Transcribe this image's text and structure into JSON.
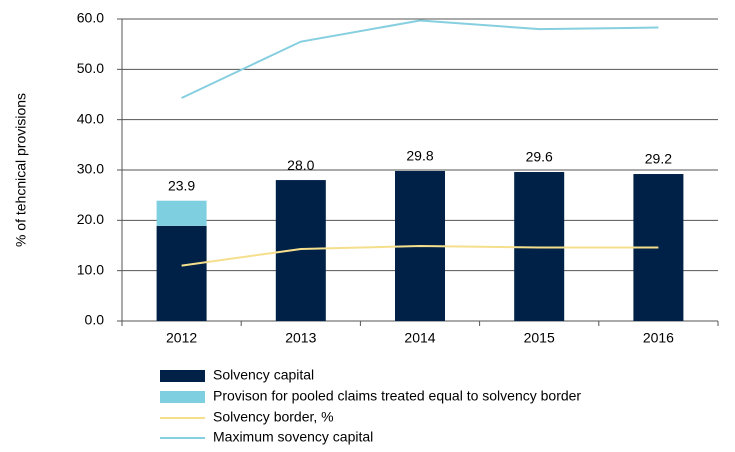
{
  "chart_data": {
    "type": "bar",
    "y_label": "% of tehcnical provisions",
    "categories": [
      "2012",
      "2013",
      "2014",
      "2015",
      "2016"
    ],
    "ylim": [
      0,
      60
    ],
    "yticks": [
      {
        "value": 0,
        "label": "0.0"
      },
      {
        "value": 10,
        "label": "10.0"
      },
      {
        "value": 20,
        "label": "20.0"
      },
      {
        "value": 30,
        "label": "30.0"
      },
      {
        "value": 40,
        "label": "40.0"
      },
      {
        "value": 50,
        "label": "50.0"
      },
      {
        "value": 60,
        "label": "60.0"
      }
    ],
    "grid": true,
    "series": [
      {
        "name": "Solvency capital",
        "kind": "bar",
        "color": "#002147",
        "values": [
          18.9,
          28.0,
          29.8,
          29.6,
          29.2
        ]
      },
      {
        "name": "Provison for pooled claims treated equal to solvency border",
        "kind": "bar",
        "color": "#7ecfdf",
        "values": [
          5.0,
          null,
          null,
          null,
          null
        ]
      },
      {
        "name": "Solvency border, %",
        "kind": "line",
        "color": "#f6df8c",
        "values": [
          11.0,
          14.3,
          14.9,
          14.6,
          14.6
        ]
      },
      {
        "name": "Maximum sovency capital",
        "kind": "line",
        "color": "#86cfe0",
        "values": [
          44.3,
          55.5,
          59.7,
          58.0,
          58.3
        ]
      }
    ],
    "totals": {
      "values": [
        23.9,
        28.0,
        29.8,
        29.6,
        29.2
      ],
      "value_labels": [
        "23.9",
        "28.0",
        "29.8",
        "29.6",
        "29.2"
      ]
    }
  }
}
